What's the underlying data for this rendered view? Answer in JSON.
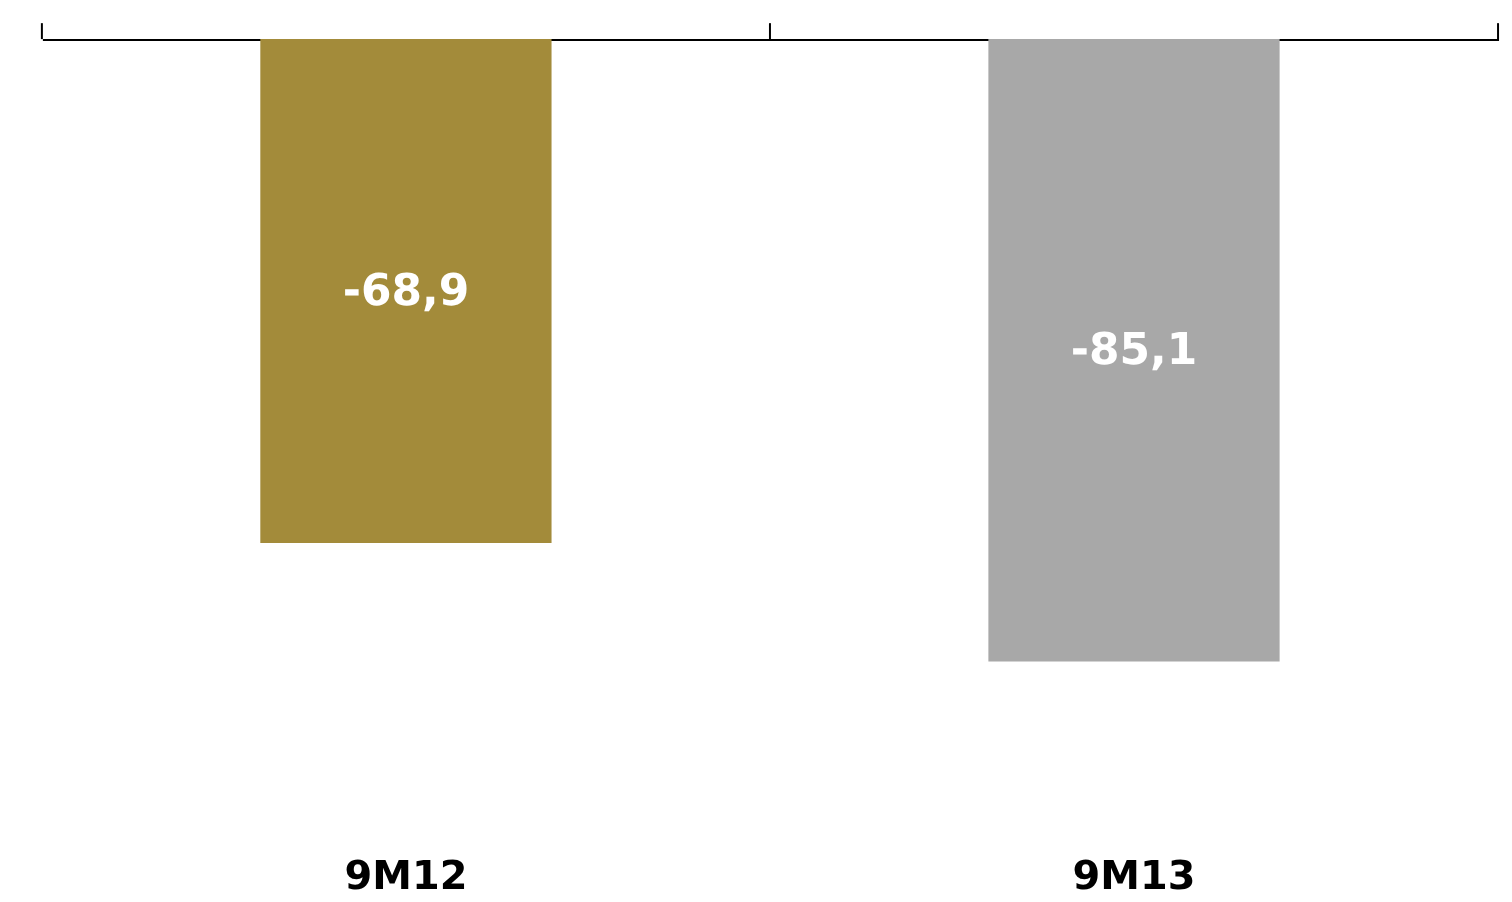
{
  "chart_data": {
    "type": "bar",
    "categories": [
      "9M12",
      "9M13"
    ],
    "values": [
      -68.9,
      -85.1
    ],
    "colors": [
      "#a38b3a",
      "#a8a8a8"
    ],
    "value_labels": [
      "-68,9",
      "-85,1"
    ],
    "grid": false
  }
}
